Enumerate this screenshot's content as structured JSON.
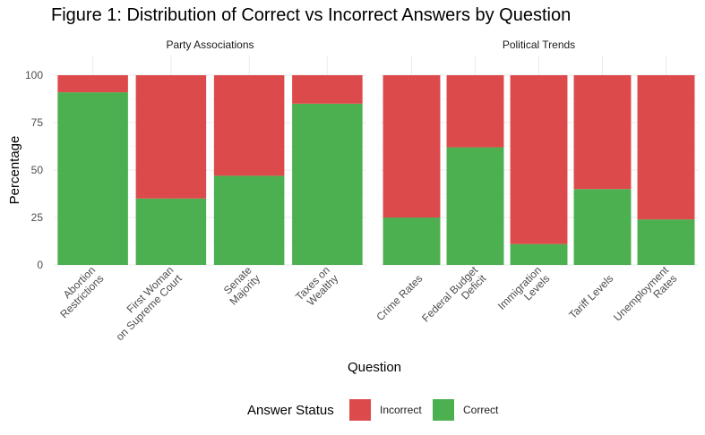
{
  "chart_data": {
    "type": "bar",
    "stacked": true,
    "title": "Figure 1: Distribution of Correct vs Incorrect Answers by Question",
    "xlabel": "Question",
    "ylabel": "Percentage",
    "ylim": [
      0,
      100
    ],
    "yticks": [
      0,
      25,
      50,
      75,
      100
    ],
    "grid": true,
    "legend": {
      "title": "Answer Status",
      "position": "bottom",
      "items": [
        {
          "label": "Incorrect",
          "color": "#dc4a4c"
        },
        {
          "label": "Correct",
          "color": "#4caf50"
        }
      ]
    },
    "panels": [
      {
        "name": "Party Associations",
        "categories": [
          [
            "Abortion",
            "Restrictions"
          ],
          [
            "First Woman",
            "on Supreme Court"
          ],
          [
            "Senate",
            "Majority"
          ],
          [
            "Taxes on",
            "Wealthy"
          ]
        ],
        "series": [
          {
            "name": "Correct",
            "values": [
              91,
              35,
              47,
              85
            ]
          },
          {
            "name": "Incorrect",
            "values": [
              9,
              65,
              53,
              15
            ]
          }
        ]
      },
      {
        "name": "Political Trends",
        "categories": [
          [
            "Crime Rates"
          ],
          [
            "Federal Budget",
            "Deficit"
          ],
          [
            "Immigration",
            "Levels"
          ],
          [
            "Tariff Levels"
          ],
          [
            "Unemployment",
            "Rates"
          ]
        ],
        "series": [
          {
            "name": "Correct",
            "values": [
              25,
              62,
              11,
              40,
              24
            ]
          },
          {
            "name": "Incorrect",
            "values": [
              75,
              38,
              89,
              60,
              76
            ]
          }
        ]
      }
    ]
  }
}
